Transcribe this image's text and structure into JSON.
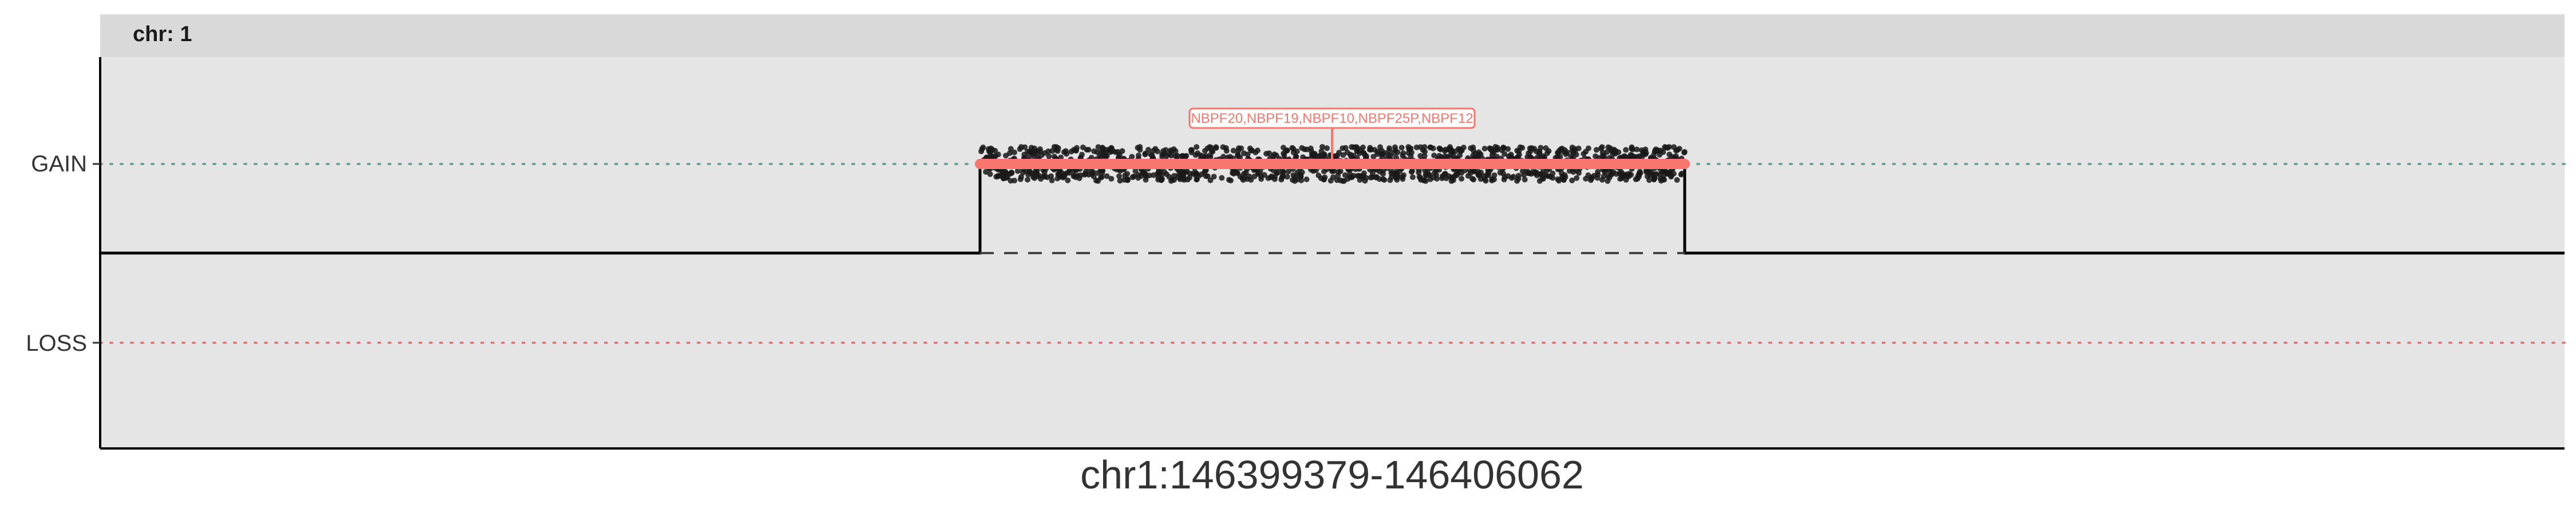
{
  "chart_data": {
    "type": "scatter",
    "facet_label": "chr: 1",
    "title": "",
    "xlabel": "chr1:146399379-146406062",
    "ylabel": "",
    "y_categories": [
      "GAIN",
      "LOSS"
    ],
    "x_range": [
      146399379,
      146406062
    ],
    "grid": false,
    "colors": {
      "panel_bg": "#e5e5e5",
      "strip_bg": "#d9d9d9",
      "points": "#1a1a1a",
      "segment": "#f8766d",
      "gain_ref_line": "#66a69a",
      "loss_ref_line": "#e07b7b",
      "step_line": "#000000"
    },
    "cnv_segment": {
      "state": "GAIN",
      "x_start_frac": 0.357,
      "x_end_frac": 0.643
    },
    "gene_annotation": {
      "label": "NBPF20,NBPF19,NBPF10,NBPF25P,NBPF12",
      "state": "GAIN"
    },
    "probe_points": {
      "state": "GAIN",
      "count": 1400,
      "description": "dense jittered probe cloud over the segment"
    }
  }
}
